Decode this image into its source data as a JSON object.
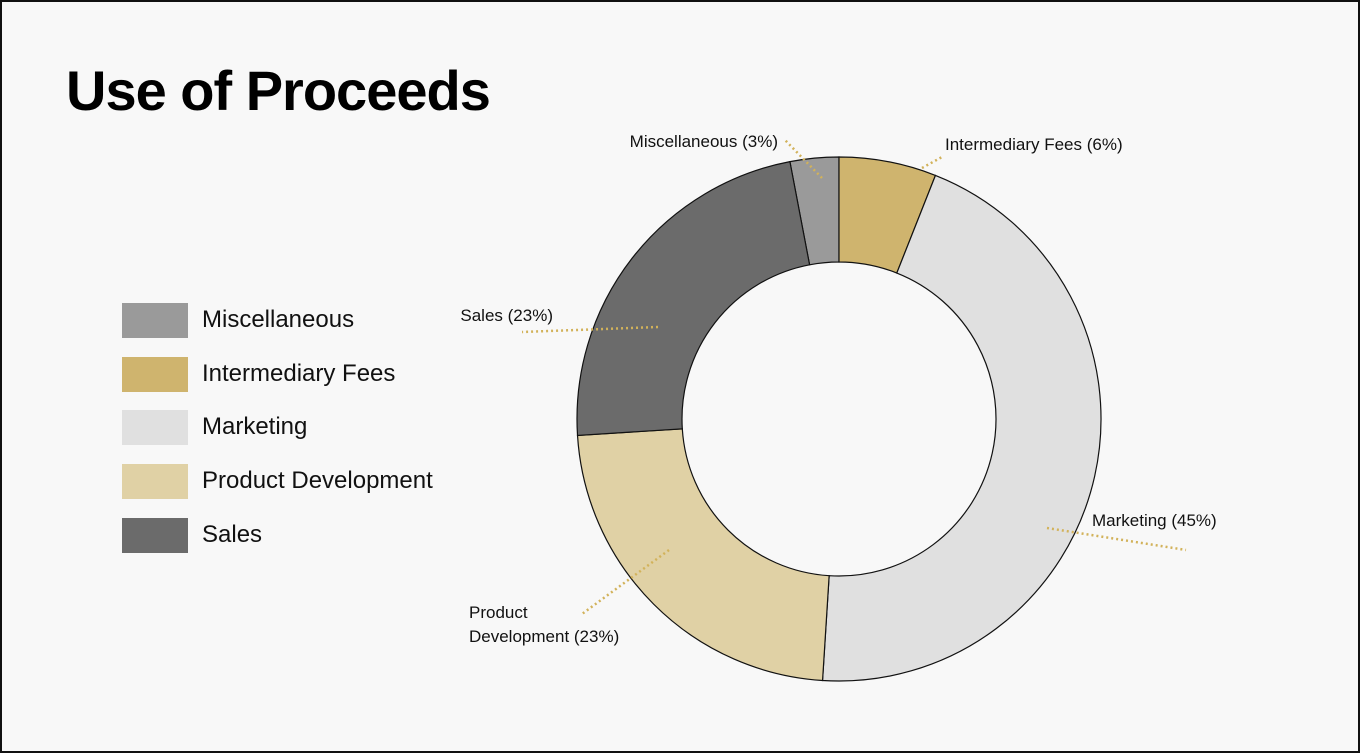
{
  "page": {
    "title": "Use of Proceeds"
  },
  "legend": {
    "items": [
      {
        "label": "Miscellaneous",
        "color": "#9a9a9a"
      },
      {
        "label": "Intermediary Fees",
        "color": "#cfb46e"
      },
      {
        "label": "Marketing",
        "color": "#e0e0e0"
      },
      {
        "label": "Product Development",
        "color": "#e0d1a5"
      },
      {
        "label": "Sales",
        "color": "#6b6b6b"
      }
    ]
  },
  "chart_data": {
    "type": "pie",
    "title": "Use of Proceeds",
    "donut": true,
    "legend_position": "left",
    "categories": [
      "Miscellaneous",
      "Intermediary Fees",
      "Marketing",
      "Product Development",
      "Sales"
    ],
    "values": [
      3,
      6,
      45,
      23,
      23
    ],
    "unit": "%",
    "colors": [
      "#9a9a9a",
      "#cfb46e",
      "#e0e0e0",
      "#e0d1a5",
      "#6b6b6b"
    ],
    "data_labels": [
      [
        "Miscellaneous (3%)"
      ],
      [
        "Intermediary Fees (6%)"
      ],
      [
        "Marketing (45%)"
      ],
      [
        "Product",
        "Development (23%)"
      ],
      [
        "Sales (23%)"
      ]
    ],
    "leader_line_color": "#d2b25a"
  }
}
